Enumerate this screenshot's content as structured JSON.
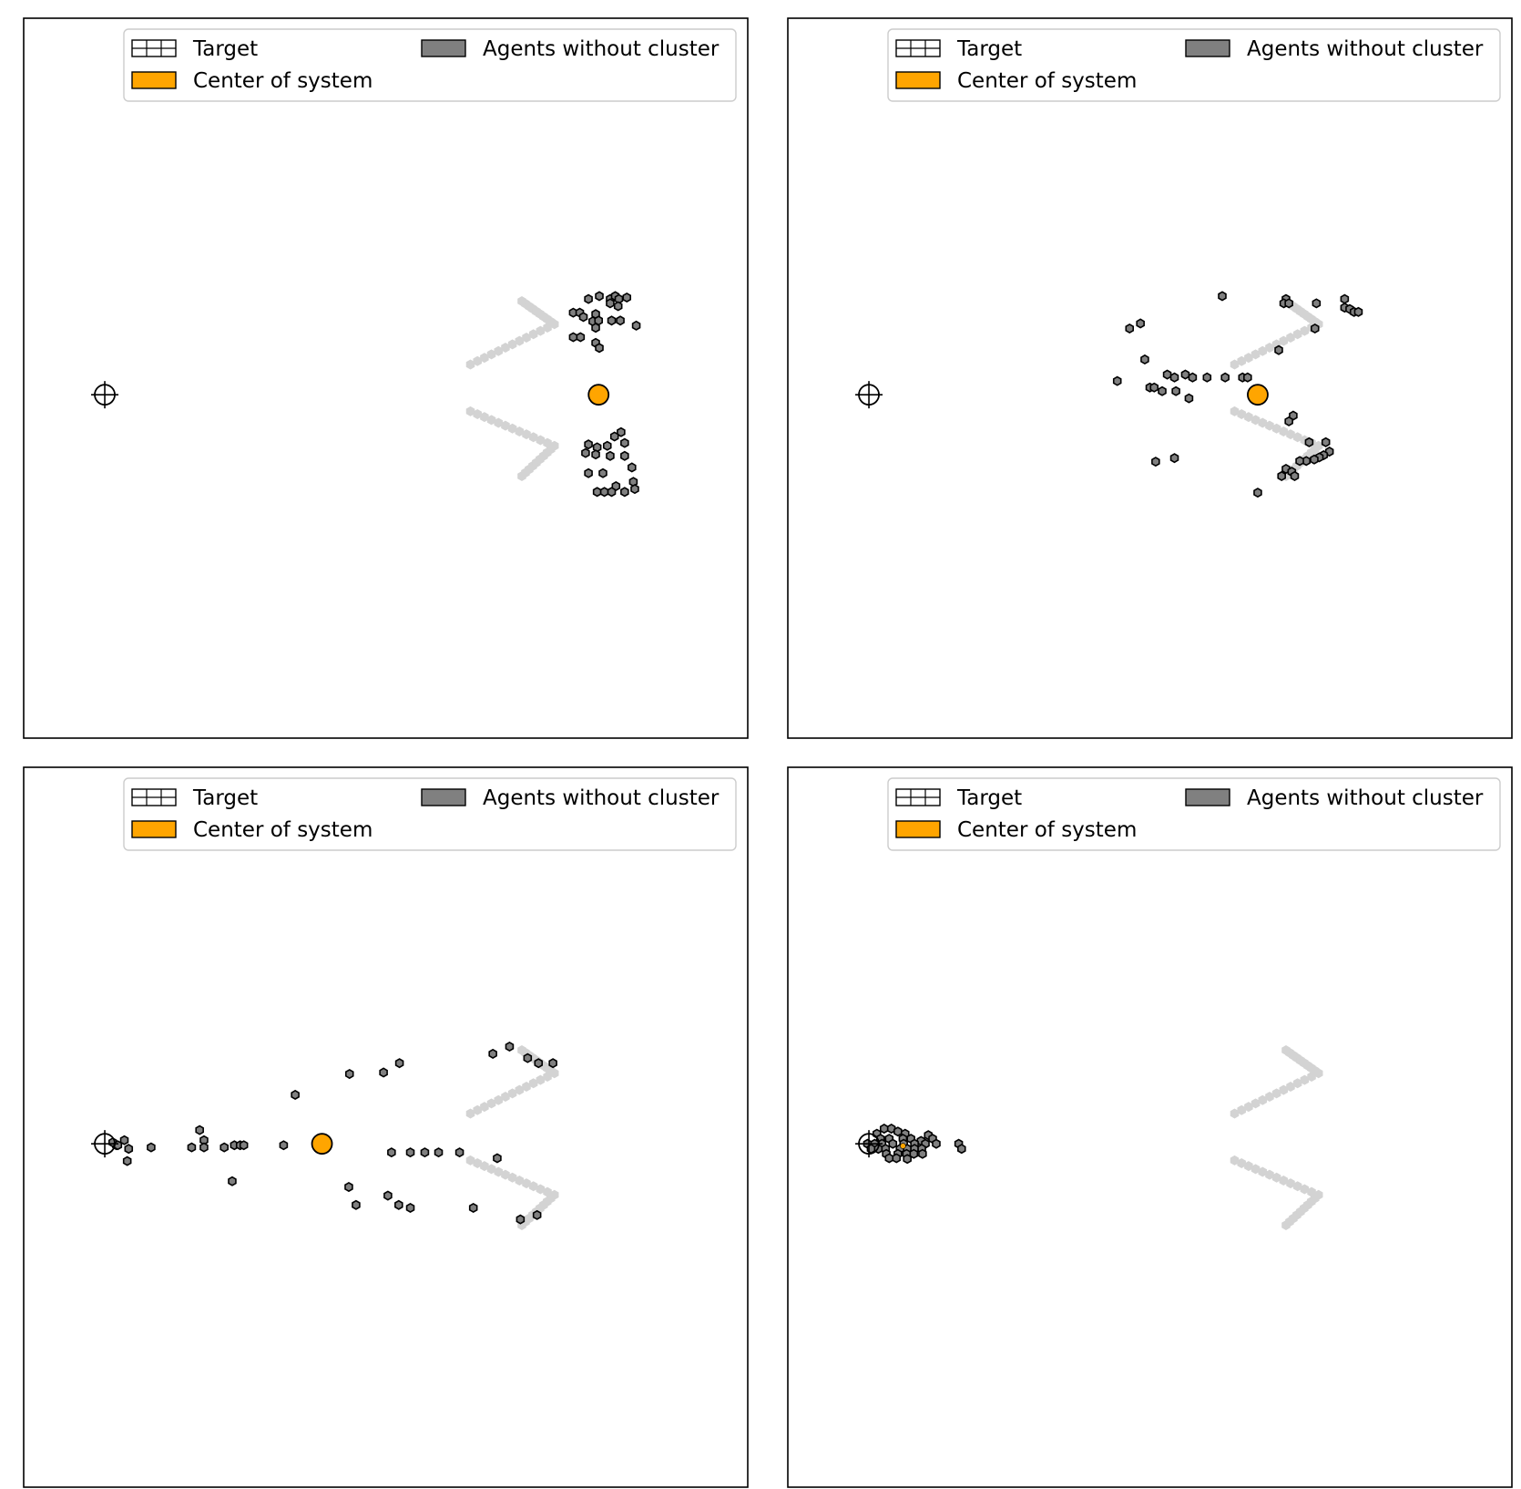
{
  "legend": {
    "target": "Target",
    "center": "Center of system",
    "agents": "Agents without cluster"
  },
  "colors": {
    "agent_fill": "#808080",
    "agent_edge": "#000000",
    "center_fill": "#ffa500",
    "corridor": "#d3d3d3",
    "frame": "#000000",
    "legend_edge": "#cccccc"
  },
  "chart_data": [
    {
      "type": "scatter",
      "panel": "top-left",
      "xlim": [
        0,
        100
      ],
      "ylim": [
        0,
        100
      ],
      "grid": false,
      "legend_placement": "top-right",
      "target": [
        11.2,
        47.7
      ],
      "center": [
        79.4,
        47.7
      ],
      "agents": [
        [
          78.0,
          61.0
        ],
        [
          79.5,
          61.4
        ],
        [
          81.0,
          61.0
        ],
        [
          81.7,
          61.4
        ],
        [
          82.2,
          61.0
        ],
        [
          83.3,
          61.2
        ],
        [
          81.0,
          60.4
        ],
        [
          82.1,
          60.0
        ],
        [
          75.9,
          59.1
        ],
        [
          76.8,
          59.1
        ],
        [
          77.3,
          58.5
        ],
        [
          79.0,
          58.9
        ],
        [
          78.6,
          57.9
        ],
        [
          79.4,
          58.0
        ],
        [
          81.2,
          58.0
        ],
        [
          82.4,
          58.0
        ],
        [
          84.6,
          57.3
        ],
        [
          79.0,
          57.0
        ],
        [
          75.9,
          55.7
        ],
        [
          76.9,
          55.7
        ],
        [
          79.0,
          54.9
        ],
        [
          79.5,
          54.2
        ],
        [
          82.5,
          42.5
        ],
        [
          81.6,
          41.9
        ],
        [
          83.0,
          41.0
        ],
        [
          78.0,
          40.8
        ],
        [
          79.2,
          40.4
        ],
        [
          80.6,
          40.6
        ],
        [
          77.6,
          39.6
        ],
        [
          79.0,
          39.4
        ],
        [
          81.0,
          39.2
        ],
        [
          83.0,
          39.2
        ],
        [
          84.0,
          37.6
        ],
        [
          78.0,
          36.8
        ],
        [
          80.0,
          36.8
        ],
        [
          84.2,
          35.6
        ],
        [
          81.8,
          35.0
        ],
        [
          84.4,
          34.6
        ],
        [
          79.2,
          34.2
        ],
        [
          80.2,
          34.2
        ],
        [
          81.2,
          34.2
        ],
        [
          83.0,
          34.2
        ]
      ]
    },
    {
      "type": "scatter",
      "panel": "top-right",
      "xlim": [
        0,
        100
      ],
      "ylim": [
        0,
        100
      ],
      "grid": false,
      "legend_placement": "top-right",
      "target": [
        11.2,
        47.7
      ],
      "center": [
        64.9,
        47.7
      ],
      "agents": [
        [
          60.0,
          61.4
        ],
        [
          68.8,
          61.0
        ],
        [
          68.5,
          60.4
        ],
        [
          69.2,
          60.4
        ],
        [
          73.0,
          60.4
        ],
        [
          76.9,
          61.0
        ],
        [
          76.9,
          59.8
        ],
        [
          77.6,
          59.6
        ],
        [
          78.2,
          59.2
        ],
        [
          78.8,
          59.2
        ],
        [
          47.2,
          56.9
        ],
        [
          48.7,
          57.6
        ],
        [
          72.8,
          56.9
        ],
        [
          67.8,
          53.9
        ],
        [
          49.3,
          52.6
        ],
        [
          52.4,
          50.5
        ],
        [
          53.4,
          50.1
        ],
        [
          54.9,
          50.5
        ],
        [
          55.9,
          50.1
        ],
        [
          57.9,
          50.1
        ],
        [
          60.4,
          50.1
        ],
        [
          62.8,
          50.1
        ],
        [
          63.5,
          50.1
        ],
        [
          45.5,
          49.6
        ],
        [
          50.0,
          48.7
        ],
        [
          50.6,
          48.7
        ],
        [
          51.7,
          48.2
        ],
        [
          53.6,
          48.2
        ],
        [
          55.4,
          47.2
        ],
        [
          69.8,
          44.8
        ],
        [
          69.2,
          44.0
        ],
        [
          72.0,
          41.1
        ],
        [
          74.3,
          41.1
        ],
        [
          74.8,
          39.8
        ],
        [
          74.0,
          39.3
        ],
        [
          73.4,
          39.0
        ],
        [
          72.7,
          38.7
        ],
        [
          71.6,
          38.5
        ],
        [
          70.7,
          38.5
        ],
        [
          50.8,
          38.4
        ],
        [
          53.4,
          38.9
        ],
        [
          68.8,
          37.4
        ],
        [
          69.6,
          37.0
        ],
        [
          68.2,
          36.4
        ],
        [
          70.0,
          36.4
        ],
        [
          64.9,
          34.1
        ]
      ]
    },
    {
      "type": "scatter",
      "panel": "bottom-left",
      "xlim": [
        0,
        100
      ],
      "ylim": [
        0,
        100
      ],
      "grid": false,
      "legend_placement": "top-right",
      "target": [
        11.2,
        47.7
      ],
      "center": [
        41.2,
        47.7
      ],
      "agents": [
        [
          64.8,
          60.2
        ],
        [
          67.1,
          61.2
        ],
        [
          69.6,
          59.6
        ],
        [
          71.1,
          58.9
        ],
        [
          73.1,
          58.9
        ],
        [
          51.9,
          58.9
        ],
        [
          49.7,
          57.6
        ],
        [
          45.0,
          57.4
        ],
        [
          37.5,
          54.5
        ],
        [
          24.3,
          49.6
        ],
        [
          24.9,
          48.2
        ],
        [
          13.9,
          48.2
        ],
        [
          12.8,
          47.5
        ],
        [
          12.3,
          47.9
        ],
        [
          13.0,
          47.5
        ],
        [
          14.5,
          47.0
        ],
        [
          17.6,
          47.2
        ],
        [
          23.2,
          47.2
        ],
        [
          24.9,
          47.2
        ],
        [
          27.7,
          47.2
        ],
        [
          29.1,
          47.5
        ],
        [
          29.9,
          47.5
        ],
        [
          30.4,
          47.5
        ],
        [
          35.9,
          47.5
        ],
        [
          50.8,
          46.5
        ],
        [
          53.4,
          46.5
        ],
        [
          55.4,
          46.5
        ],
        [
          57.3,
          46.5
        ],
        [
          60.2,
          46.5
        ],
        [
          65.4,
          45.7
        ],
        [
          14.3,
          45.3
        ],
        [
          28.8,
          42.5
        ],
        [
          44.9,
          41.7
        ],
        [
          50.3,
          40.5
        ],
        [
          45.9,
          39.2
        ],
        [
          51.8,
          39.2
        ],
        [
          53.4,
          38.8
        ],
        [
          62.1,
          38.8
        ],
        [
          70.9,
          37.8
        ],
        [
          68.6,
          37.2
        ]
      ]
    },
    {
      "type": "scatter",
      "panel": "bottom-right",
      "xlim": [
        0,
        100
      ],
      "ylim": [
        0,
        100
      ],
      "grid": false,
      "legend_placement": "top-right",
      "target": [
        11.2,
        47.7
      ],
      "center": [
        15.9,
        47.4
      ],
      "agents": [
        [
          12.3,
          49.1
        ],
        [
          13.3,
          49.8
        ],
        [
          14.3,
          49.8
        ],
        [
          15.2,
          49.4
        ],
        [
          16.2,
          49.1
        ],
        [
          19.4,
          48.9
        ],
        [
          20.0,
          48.4
        ],
        [
          12.8,
          48.4
        ],
        [
          14.0,
          48.4
        ],
        [
          15.9,
          48.4
        ],
        [
          17.0,
          48.4
        ],
        [
          18.4,
          48.1
        ],
        [
          11.0,
          47.7
        ],
        [
          12.0,
          47.7
        ],
        [
          13.0,
          47.7
        ],
        [
          14.5,
          47.7
        ],
        [
          16.0,
          47.7
        ],
        [
          17.5,
          47.7
        ],
        [
          19.0,
          47.7
        ],
        [
          20.5,
          47.7
        ],
        [
          23.6,
          47.7
        ],
        [
          24.0,
          47.0
        ],
        [
          11.5,
          47.0
        ],
        [
          12.5,
          47.0
        ],
        [
          13.5,
          47.0
        ],
        [
          15.5,
          47.0
        ],
        [
          16.5,
          47.0
        ],
        [
          17.5,
          47.0
        ],
        [
          18.5,
          47.0
        ],
        [
          13.6,
          46.3
        ],
        [
          15.2,
          46.3
        ],
        [
          16.4,
          46.3
        ],
        [
          17.4,
          46.3
        ],
        [
          18.6,
          46.3
        ],
        [
          14.0,
          45.7
        ],
        [
          15.0,
          45.7
        ],
        [
          16.5,
          45.6
        ]
      ]
    }
  ]
}
